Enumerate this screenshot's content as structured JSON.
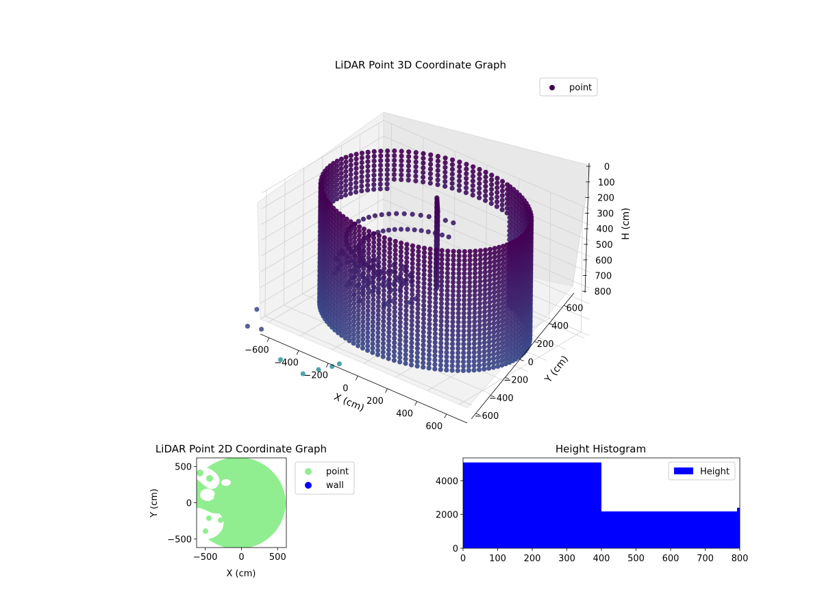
{
  "chart_data": [
    {
      "type": "scatter3d",
      "title": "LiDAR Point 3D Coordinate Graph",
      "xlabel": "X (cm)",
      "ylabel": "Y (cm)",
      "zlabel": "H (cm)",
      "x_ticks": [
        "−600",
        "−400",
        "−200",
        "0",
        "200",
        "400",
        "600"
      ],
      "y_ticks": [
        "−600",
        "−400",
        "−200",
        "0",
        "200",
        "400",
        "600"
      ],
      "z_ticks": [
        "0",
        "100",
        "200",
        "300",
        "400",
        "500",
        "600",
        "700",
        "800"
      ],
      "xlim": [
        -650,
        650
      ],
      "ylim": [
        -650,
        650
      ],
      "zlim": [
        800,
        0
      ],
      "z_axis_inverted": true,
      "colormap": "viridis",
      "legend": {
        "position": "top-right",
        "entries": [
          "point"
        ]
      },
      "series": [
        {
          "name": "point",
          "color": "#440154"
        }
      ],
      "description": "dense cylindrical wall of points (radius ~600 cm, heights 0–800 cm) with an opening on the left side and a tilted slab near the center"
    },
    {
      "type": "scatter",
      "title": "LiDAR Point 2D Coordinate Graph",
      "xlabel": "X (cm)",
      "ylabel": "Y (cm)",
      "x_ticks": [
        "−500",
        "0",
        "500"
      ],
      "y_ticks": [
        "−500",
        "0",
        "500"
      ],
      "xlim": [
        -620,
        620
      ],
      "ylim": [
        -620,
        620
      ],
      "legend": {
        "position": "outside-right",
        "entries": [
          "point",
          "wall"
        ]
      },
      "series": [
        {
          "name": "point",
          "color": "#90ee90"
        },
        {
          "name": "wall",
          "color": "#0000ff"
        }
      ]
    },
    {
      "type": "histogram",
      "title": "Height Histogram",
      "x_ticks": [
        "0",
        "100",
        "200",
        "300",
        "400",
        "500",
        "600",
        "700",
        "800"
      ],
      "y_ticks": [
        "0",
        "2000",
        "4000"
      ],
      "xlim": [
        0,
        800
      ],
      "ylim": [
        0,
        5350
      ],
      "legend": {
        "position": "top-right",
        "entries": [
          "Height"
        ]
      },
      "series": [
        {
          "name": "Height",
          "color": "#0000ff"
        }
      ],
      "bins": [
        {
          "x0": 0,
          "x1": 400,
          "count": 5080
        },
        {
          "x0": 400,
          "x1": 792,
          "count": 2180
        },
        {
          "x0": 792,
          "x1": 800,
          "count": 2400
        }
      ]
    }
  ]
}
